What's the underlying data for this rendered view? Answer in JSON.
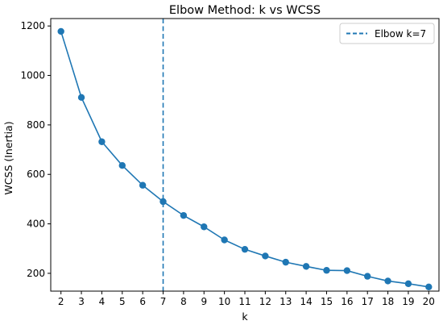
{
  "chart_data": {
    "type": "line",
    "title": "Elbow Method: k vs WCSS",
    "xlabel": "k",
    "ylabel": "WCSS (Inertia)",
    "x": [
      2,
      3,
      4,
      5,
      6,
      7,
      8,
      9,
      10,
      11,
      12,
      13,
      14,
      15,
      16,
      17,
      18,
      19,
      20
    ],
    "series": [
      {
        "values": [
          1178,
          911,
          732,
          636,
          556,
          490,
          434,
          388,
          335,
          297,
          270,
          245,
          228,
          212,
          211,
          188,
          169,
          158,
          145
        ],
        "color": "#1f77b4",
        "marker": "circle"
      }
    ],
    "xlim": [
      1.5,
      20.5
    ],
    "ylim": [
      128,
      1230
    ],
    "xticks": [
      2,
      3,
      4,
      5,
      6,
      7,
      8,
      9,
      10,
      11,
      12,
      13,
      14,
      15,
      16,
      17,
      18,
      19,
      20
    ],
    "yticks": [
      200,
      400,
      600,
      800,
      1000,
      1200
    ],
    "vline": {
      "x": 7,
      "label": "Elbow k=7",
      "color": "#1f77b4",
      "style": "dashed"
    },
    "legend": {
      "position": "top-right",
      "entries": [
        "Elbow k=7"
      ]
    },
    "grid": false
  }
}
